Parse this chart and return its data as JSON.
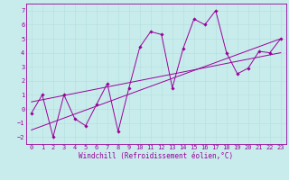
{
  "bg_color": "#c8ecec",
  "line_color": "#990099",
  "grid_color": "#b8e0e0",
  "xlabel": "Windchill (Refroidissement éolien,°C)",
  "xlim": [
    -0.5,
    23.5
  ],
  "ylim": [
    -2.5,
    7.5
  ],
  "xticks": [
    0,
    1,
    2,
    3,
    4,
    5,
    6,
    7,
    8,
    9,
    10,
    11,
    12,
    13,
    14,
    15,
    16,
    17,
    18,
    19,
    20,
    21,
    22,
    23
  ],
  "yticks": [
    -2,
    -1,
    0,
    1,
    2,
    3,
    4,
    5,
    6,
    7
  ],
  "line1_x": [
    0,
    1,
    2,
    3,
    4,
    5,
    6,
    7,
    8,
    9,
    10,
    11,
    12,
    13,
    14,
    15,
    16,
    17,
    18,
    19,
    20,
    21,
    22,
    23
  ],
  "line1_y": [
    -0.3,
    1.0,
    -2.0,
    1.0,
    -0.7,
    -1.2,
    0.3,
    1.8,
    -1.6,
    1.5,
    4.4,
    5.5,
    5.3,
    1.5,
    4.3,
    6.4,
    6.0,
    7.0,
    4.0,
    2.5,
    2.9,
    4.1,
    4.0,
    5.0
  ],
  "line2_x": [
    0,
    23
  ],
  "line2_y": [
    -1.5,
    5.0
  ],
  "line3_x": [
    0,
    23
  ],
  "line3_y": [
    0.5,
    4.0
  ],
  "tick_fontsize": 5,
  "xlabel_fontsize": 5.5,
  "marker": "D",
  "markersize": 1.8,
  "linewidth": 0.7
}
